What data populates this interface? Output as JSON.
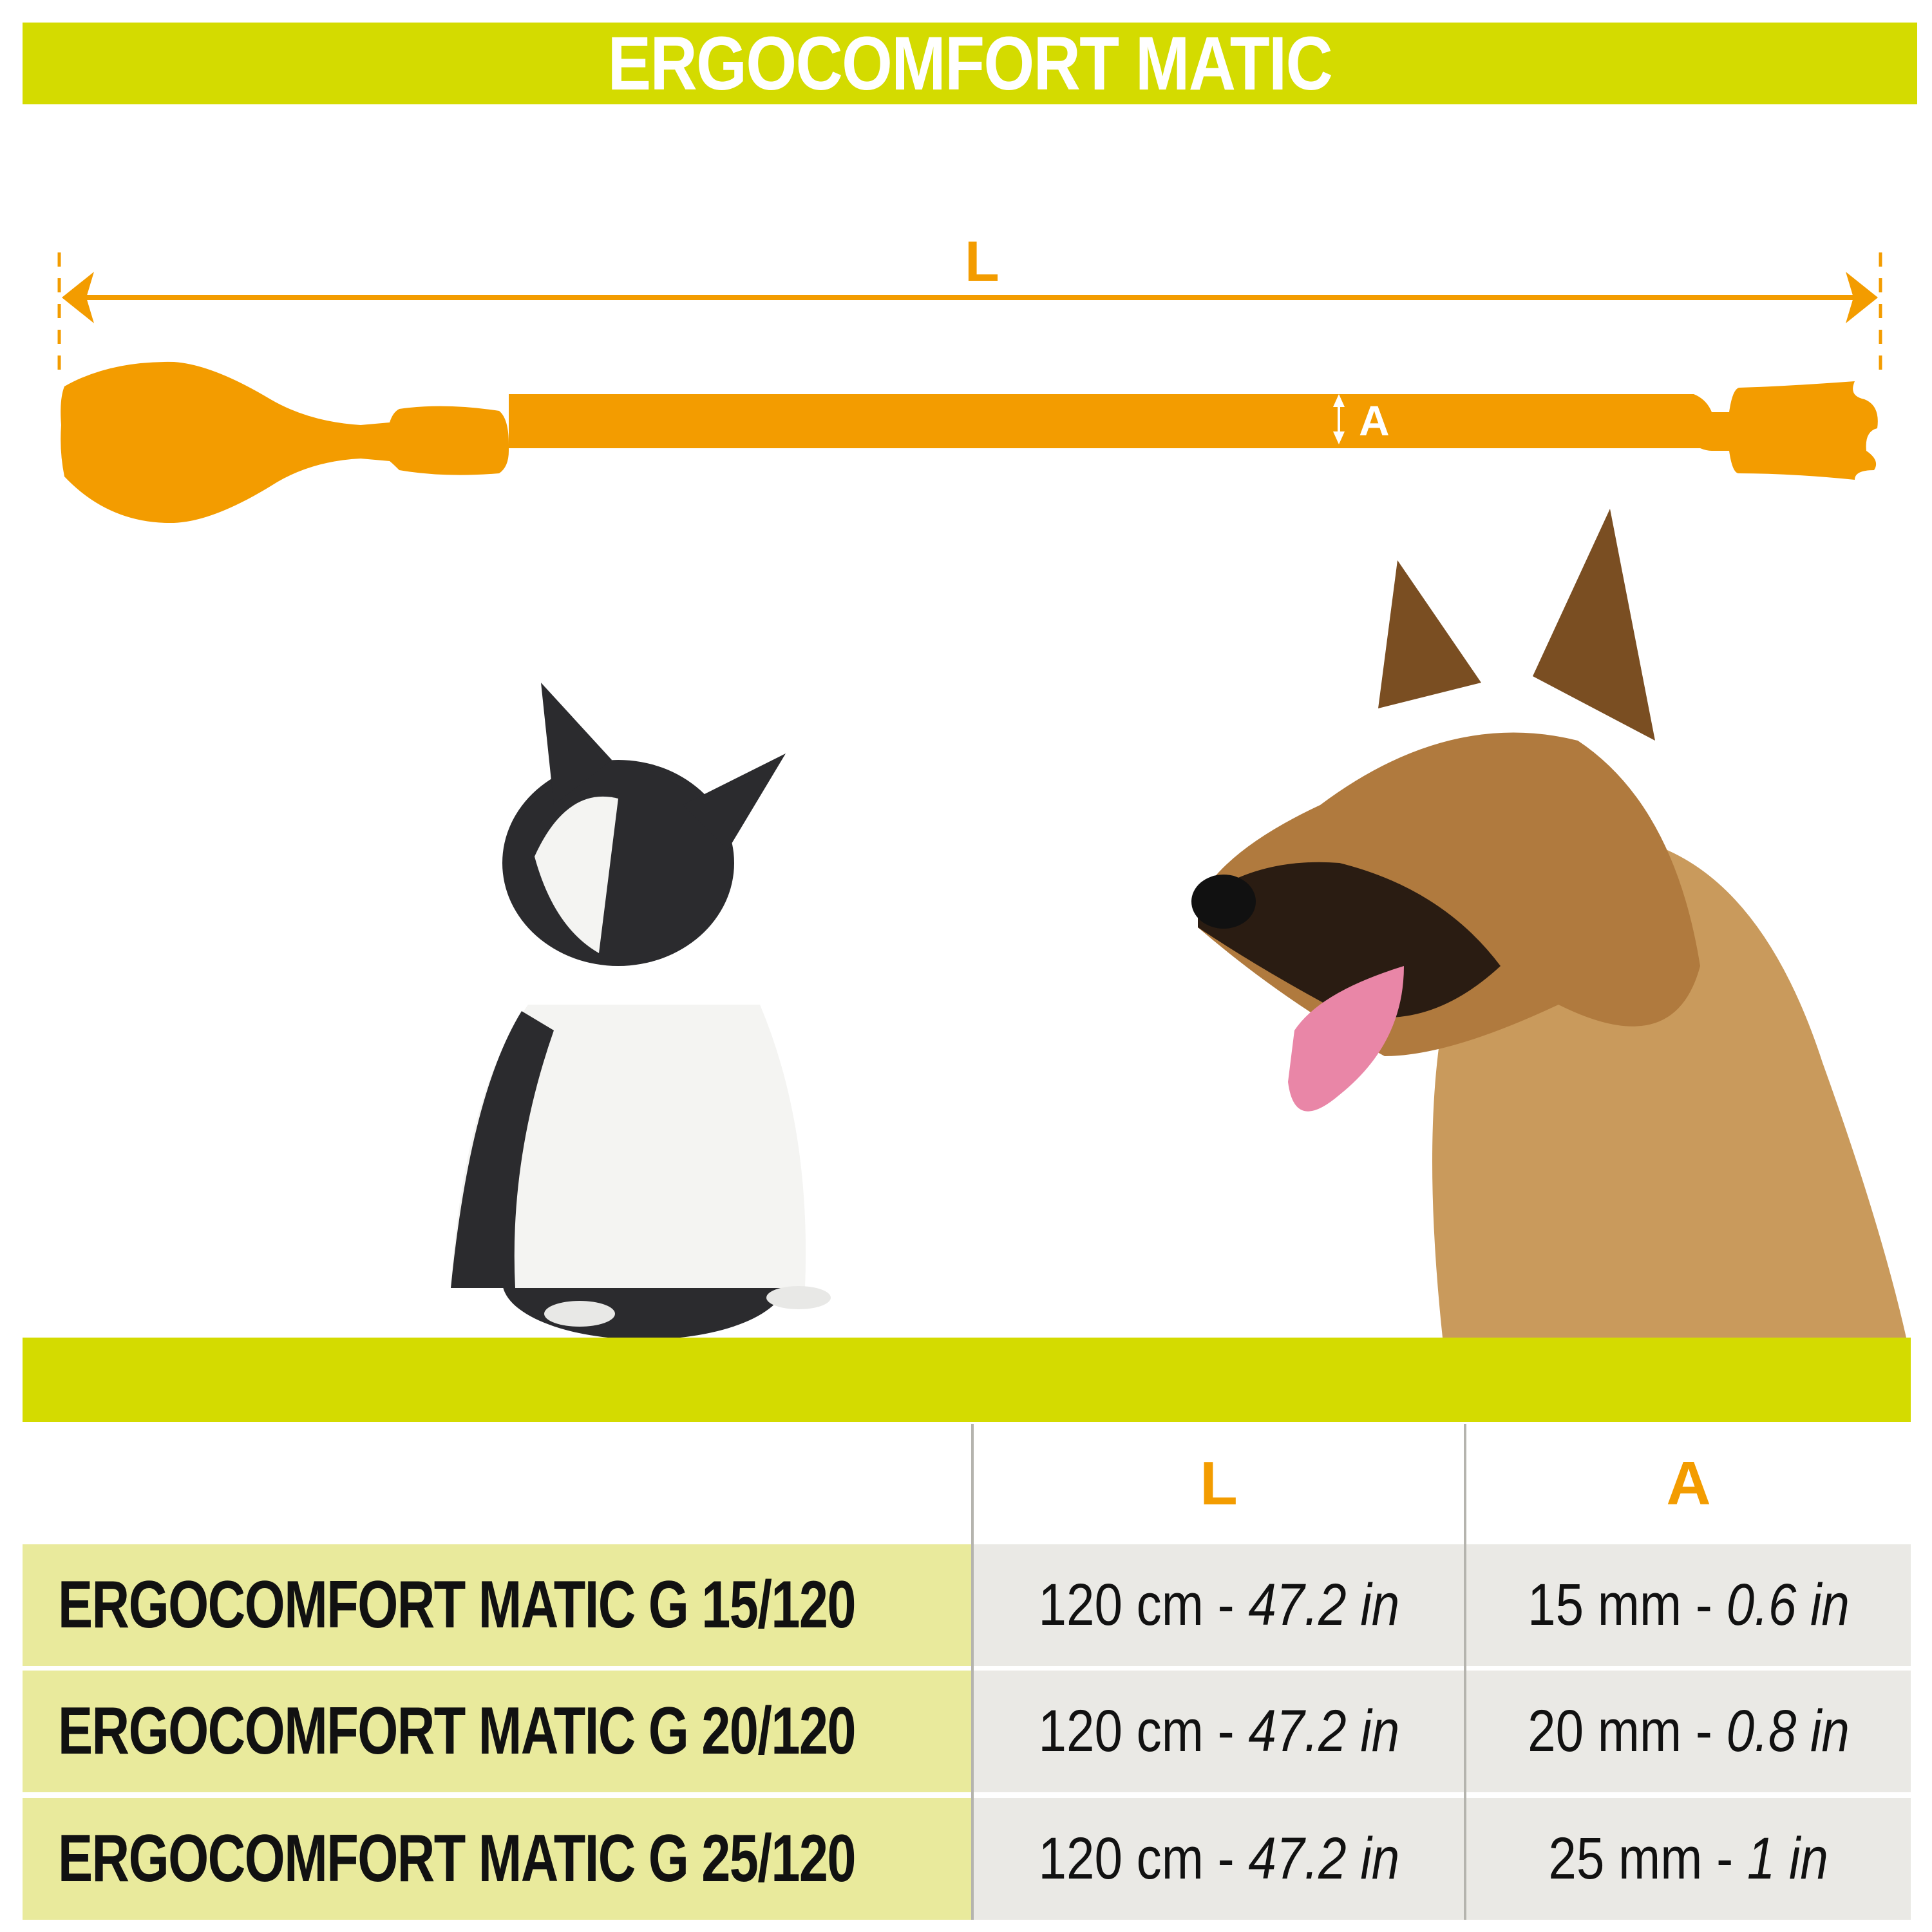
{
  "title": "ERGOCOMFORT MATIC",
  "diagram": {
    "length_label": "L",
    "width_label": "A",
    "accent_color": "#f39c00",
    "band_color": "#d4db00"
  },
  "images": [
    "french-bulldog-photo",
    "german-shepherd-photo"
  ],
  "table": {
    "headers": [
      "",
      "L",
      "A"
    ],
    "rows": [
      {
        "model": "ERGOCOMFORT MATIC G 15/120",
        "length_metric": "120 cm - ",
        "length_imperial": "47.2 in",
        "width_metric": "15 mm - ",
        "width_imperial": "0.6 in"
      },
      {
        "model": "ERGOCOMFORT MATIC G 20/120",
        "length_metric": "120 cm - ",
        "length_imperial": "47.2 in",
        "width_metric": "20 mm - ",
        "width_imperial": "0.8 in"
      },
      {
        "model": "ERGOCOMFORT MATIC G 25/120",
        "length_metric": "120 cm - ",
        "length_imperial": "47.2 in",
        "width_metric": "25 mm - ",
        "width_imperial": "1 in"
      }
    ]
  }
}
